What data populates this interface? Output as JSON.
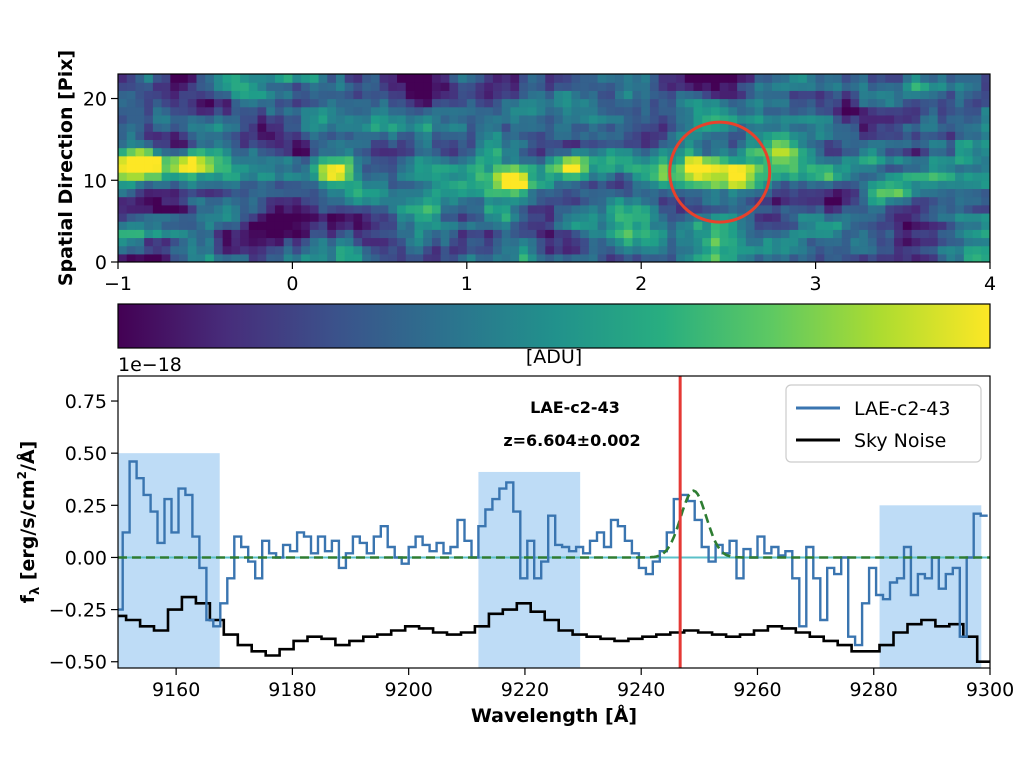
{
  "chart_data": [
    {
      "type": "heatmap",
      "ylabel": "Spatial Direction [Pix]",
      "xlim": [
        -1,
        4
      ],
      "ylim": [
        0,
        23
      ],
      "x_ticks": [
        "−1",
        "0",
        "1",
        "2",
        "3",
        "4"
      ],
      "x_tick_values": [
        -1,
        0,
        1,
        2,
        3,
        4
      ],
      "y_ticks": [
        "0",
        "10",
        "20"
      ],
      "y_tick_values": [
        0,
        10,
        20
      ],
      "grid_cols": 100,
      "grid_rows": 23,
      "colormap": "viridis",
      "colorbar_label": "[ADU]",
      "bright_spots": [
        {
          "x": -0.85,
          "y": 12,
          "value": 0.95
        },
        {
          "x": -0.6,
          "y": 12,
          "value": 0.8
        },
        {
          "x": 0.25,
          "y": 11,
          "value": 0.7
        },
        {
          "x": 1.27,
          "y": 10,
          "value": 0.95
        },
        {
          "x": 1.6,
          "y": 12,
          "value": 0.85
        },
        {
          "x": 2.33,
          "y": 11.5,
          "value": 1.0
        },
        {
          "x": 2.55,
          "y": 11,
          "value": 0.7
        },
        {
          "x": -0.8,
          "y": 23,
          "value": 0.7
        },
        {
          "x": 3.6,
          "y": 21,
          "value": 0.65
        }
      ],
      "circle_marker": {
        "x": 2.45,
        "y": 11,
        "color": "#e8412c"
      }
    },
    {
      "type": "line",
      "title_line1": "LAE-c2-43",
      "title_line2": "z=6.604±0.002",
      "exponent_label": "1e−18",
      "xlabel": "Wavelength [Å]",
      "ylabel": "f",
      "ylabel_sub": "λ",
      "ylabel_units": "[erg/s/cm",
      "ylabel_units_sup": "2",
      "ylabel_units_end": "/Å]",
      "xlim": [
        9150,
        9300
      ],
      "ylim": [
        -0.53,
        0.87
      ],
      "x_ticks": [
        "9160",
        "9180",
        "9200",
        "9220",
        "9240",
        "9260",
        "9280",
        "9300"
      ],
      "x_tick_values": [
        9160,
        9180,
        9200,
        9220,
        9240,
        9260,
        9280,
        9300
      ],
      "y_ticks": [
        "−0.50",
        "−0.25",
        "0.00",
        "0.25",
        "0.50",
        "0.75"
      ],
      "y_tick_values": [
        -0.5,
        -0.25,
        0.0,
        0.25,
        0.5,
        0.75
      ],
      "legend": [
        {
          "label": "LAE-c2-43",
          "color": "#3a75b0"
        },
        {
          "label": "Sky Noise",
          "color": "#000000"
        }
      ],
      "shaded_regions": [
        {
          "x0": 9150,
          "x1": 9167.5,
          "y0": -0.53,
          "y1": 0.5
        },
        {
          "x0": 9212,
          "x1": 9229.5,
          "y0": -0.53,
          "y1": 0.41
        },
        {
          "x0": 9281,
          "x1": 9298.5,
          "y0": -0.53,
          "y1": 0.25
        }
      ],
      "vertical_line": {
        "x": 9246.7,
        "color": "#e53935"
      },
      "zero_line_color": "#5bc0c8",
      "gaussian_fit": {
        "center": 9249,
        "amplitude": 0.32,
        "sigma": 2.2,
        "color": "#2e7d32"
      },
      "series": [
        {
          "name": "LAE-c2-43",
          "color": "#3a75b0",
          "x": [
            9150.2,
            9151.4,
            9152.6,
            9153.8,
            9155.0,
            9156.2,
            9157.4,
            9158.6,
            9159.8,
            9161.0,
            9162.2,
            9163.4,
            9164.6,
            9165.8,
            9167.0,
            9168.2,
            9169.4,
            9170.6,
            9171.8,
            9173.0,
            9174.2,
            9175.4,
            9176.6,
            9177.8,
            9179.0,
            9180.2,
            9181.4,
            9182.6,
            9183.8,
            9185.0,
            9186.2,
            9187.4,
            9188.6,
            9189.8,
            9191.0,
            9192.2,
            9193.4,
            9194.6,
            9195.8,
            9197.0,
            9198.2,
            9199.4,
            9200.6,
            9201.8,
            9203.0,
            9204.2,
            9205.4,
            9206.6,
            9207.8,
            9209.0,
            9210.2,
            9211.4,
            9212.6,
            9213.8,
            9215.0,
            9216.2,
            9217.4,
            9218.6,
            9219.8,
            9221.0,
            9222.2,
            9223.4,
            9224.6,
            9225.8,
            9227.0,
            9228.2,
            9229.4,
            9230.6,
            9231.8,
            9233.0,
            9234.2,
            9235.4,
            9236.6,
            9237.8,
            9239.0,
            9240.2,
            9241.4,
            9242.6,
            9243.8,
            9245.0,
            9246.2,
            9247.4,
            9248.6,
            9249.8,
            9251.0,
            9252.2,
            9253.4,
            9254.6,
            9255.8,
            9257.0,
            9258.2,
            9259.4,
            9260.6,
            9261.8,
            9263.0,
            9264.2,
            9265.4,
            9266.6,
            9267.8,
            9269.0,
            9270.2,
            9271.4,
            9272.6,
            9273.8,
            9275.0,
            9276.2,
            9277.4,
            9278.6,
            9279.8,
            9281.0,
            9282.2,
            9283.4,
            9284.6,
            9285.8,
            9287.0,
            9288.2,
            9289.4,
            9290.6,
            9291.8,
            9293.0,
            9294.2,
            9295.4,
            9296.6,
            9297.8,
            9299.0
          ],
          "y": [
            -0.25,
            0.12,
            0.46,
            0.38,
            0.3,
            0.22,
            0.07,
            0.28,
            0.12,
            0.33,
            0.3,
            0.1,
            -0.05,
            -0.3,
            -0.33,
            -0.22,
            -0.1,
            0.1,
            0.05,
            -0.02,
            -0.1,
            0.08,
            0.02,
            0.0,
            0.06,
            0.03,
            0.12,
            0.1,
            0.02,
            0.1,
            0.03,
            0.08,
            -0.05,
            0.02,
            0.1,
            0.07,
            0.02,
            0.1,
            0.15,
            0.05,
            0.0,
            -0.03,
            0.05,
            0.1,
            0.06,
            0.03,
            0.07,
            0.02,
            0.05,
            0.18,
            0.08,
            0.0,
            0.15,
            0.23,
            0.28,
            0.33,
            0.36,
            0.22,
            -0.1,
            0.08,
            -0.1,
            -0.02,
            0.2,
            0.06,
            0.05,
            0.03,
            0.05,
            0.02,
            0.08,
            0.12,
            0.05,
            0.18,
            0.15,
            0.08,
            0.02,
            -0.05,
            -0.08,
            -0.02,
            0.03,
            0.12,
            0.28,
            0.3,
            0.27,
            0.18,
            0.05,
            -0.02,
            0.06,
            0.02,
            0.08,
            -0.1,
            0.04,
            0.0,
            0.1,
            0.02,
            0.05,
            0.01,
            0.03,
            -0.1,
            -0.33,
            0.05,
            -0.1,
            -0.3,
            -0.05,
            -0.08,
            0.0,
            -0.38,
            -0.42,
            -0.22,
            -0.05,
            -0.18,
            -0.2,
            -0.12,
            -0.1,
            0.05,
            -0.18,
            -0.08,
            -0.1,
            0.0,
            -0.15,
            -0.08,
            -0.05,
            -0.38,
            0.0,
            0.21,
            0.2
          ]
        },
        {
          "name": "Sky Noise",
          "color": "#000000",
          "x": [
            9150.2,
            9152.6,
            9155.0,
            9157.4,
            9159.8,
            9162.2,
            9164.6,
            9167.0,
            9169.4,
            9171.8,
            9174.2,
            9176.6,
            9179.0,
            9181.4,
            9183.8,
            9186.2,
            9188.6,
            9191.0,
            9193.4,
            9195.8,
            9198.2,
            9200.6,
            9203.0,
            9205.4,
            9207.8,
            9210.2,
            9212.6,
            9215.0,
            9217.4,
            9219.8,
            9222.2,
            9224.6,
            9227.0,
            9229.4,
            9231.8,
            9234.2,
            9236.6,
            9239.0,
            9241.4,
            9243.8,
            9246.2,
            9248.6,
            9251.0,
            9253.4,
            9255.8,
            9258.2,
            9260.6,
            9263.0,
            9265.4,
            9267.8,
            9270.2,
            9272.6,
            9275.0,
            9277.4,
            9279.8,
            9282.2,
            9284.6,
            9287.0,
            9289.4,
            9291.8,
            9294.2,
            9296.6,
            9299.0
          ],
          "y": [
            -0.28,
            -0.3,
            -0.33,
            -0.35,
            -0.25,
            -0.19,
            -0.22,
            -0.3,
            -0.37,
            -0.42,
            -0.45,
            -0.47,
            -0.44,
            -0.4,
            -0.38,
            -0.39,
            -0.42,
            -0.4,
            -0.38,
            -0.37,
            -0.35,
            -0.33,
            -0.34,
            -0.36,
            -0.37,
            -0.36,
            -0.33,
            -0.27,
            -0.25,
            -0.22,
            -0.26,
            -0.3,
            -0.35,
            -0.37,
            -0.38,
            -0.39,
            -0.4,
            -0.39,
            -0.38,
            -0.37,
            -0.36,
            -0.35,
            -0.36,
            -0.37,
            -0.38,
            -0.37,
            -0.35,
            -0.33,
            -0.34,
            -0.36,
            -0.38,
            -0.4,
            -0.42,
            -0.45,
            -0.45,
            -0.42,
            -0.36,
            -0.32,
            -0.3,
            -0.33,
            -0.32,
            -0.38,
            -0.5
          ]
        }
      ]
    }
  ]
}
